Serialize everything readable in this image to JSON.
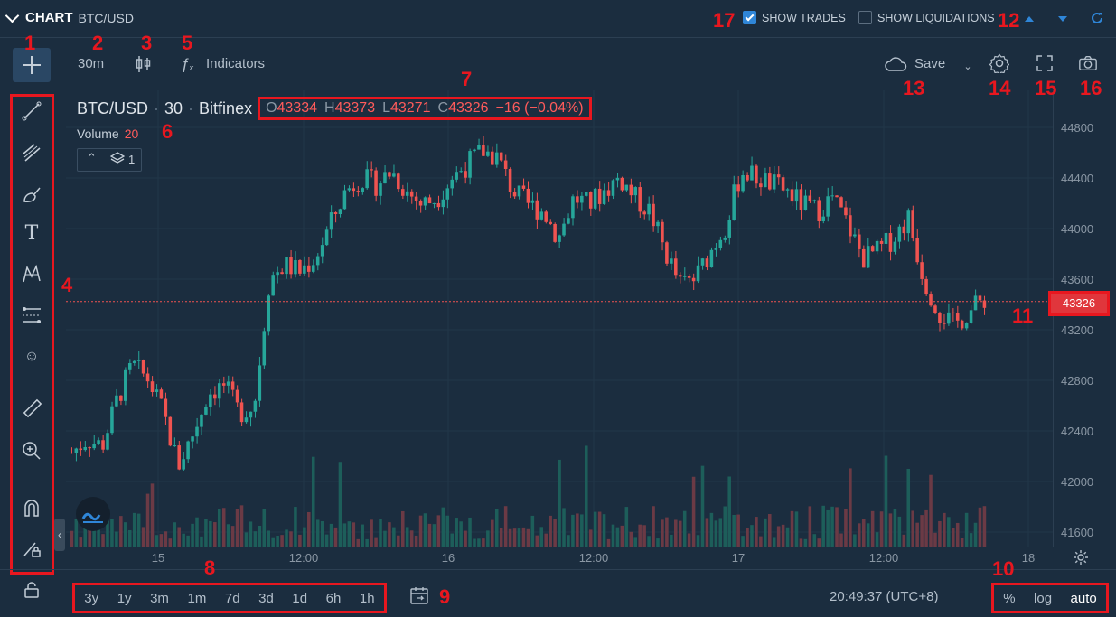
{
  "header": {
    "title": "CHART",
    "symbol": "BTC/USD",
    "show_trades_label": "SHOW TRADES",
    "show_trades_checked": true,
    "show_liquidations_label": "SHOW LIQUIDATIONS",
    "show_liquidations_checked": false
  },
  "toolbar": {
    "interval": "30m",
    "indicators_label": "Indicators",
    "save_label": "Save"
  },
  "legend": {
    "symbol": "BTC/USD",
    "interval": "30",
    "exchange": "Bitfinex",
    "o_key": "O",
    "o_val": "43334",
    "h_key": "H",
    "h_val": "43373",
    "l_key": "L",
    "l_val": "43271",
    "c_key": "C",
    "c_val": "43326",
    "change": "−16 (−0.04%)",
    "volume_label": "Volume",
    "volume_value": "20",
    "layers_count": "1"
  },
  "price_axis": {
    "ticks": [
      "44800",
      "44400",
      "44000",
      "43600",
      "43200",
      "42800",
      "42400",
      "42000",
      "41600"
    ],
    "current_price": "43326"
  },
  "time_axis": {
    "ticks": [
      "15",
      "12:00",
      "16",
      "12:00",
      "17",
      "12:00",
      "18"
    ]
  },
  "bottom": {
    "ranges": [
      "3y",
      "1y",
      "3m",
      "1m",
      "7d",
      "3d",
      "1d",
      "6h",
      "1h"
    ],
    "clock": "20:49:37 (UTC+8)",
    "percent_label": "%",
    "log_label": "log",
    "auto_label": "auto"
  },
  "annotations": [
    "1",
    "2",
    "3",
    "4",
    "5",
    "6",
    "7",
    "8",
    "9",
    "10",
    "11",
    "12",
    "13",
    "14",
    "15",
    "16",
    "17"
  ],
  "colors": {
    "background": "#1b2d3f",
    "up": "#26a69a",
    "down": "#ef5350",
    "annotation": "#e8171f"
  },
  "chart_data": {
    "type": "candlestick",
    "price_range": [
      41500,
      44900
    ],
    "current_price": 43326,
    "approx_path": [
      42200,
      42300,
      42250,
      42600,
      42850,
      42750,
      42500,
      42100,
      42350,
      42650,
      42700,
      42500,
      42550,
      43500,
      43600,
      43550,
      43650,
      43900,
      44150,
      44250,
      44200,
      44300,
      44150,
      44050,
      44100,
      44250,
      44350,
      44450,
      44400,
      44150,
      44050,
      44000,
      43800,
      44100,
      44050,
      44150,
      44250,
      44100,
      44000,
      43700,
      43450,
      43500,
      43700,
      43900,
      44300,
      44250,
      44200,
      44150,
      44050,
      44000,
      44100,
      43900,
      43650,
      43700,
      43800,
      43950,
      43500,
      43250,
      43150,
      43250,
      43350
    ]
  }
}
